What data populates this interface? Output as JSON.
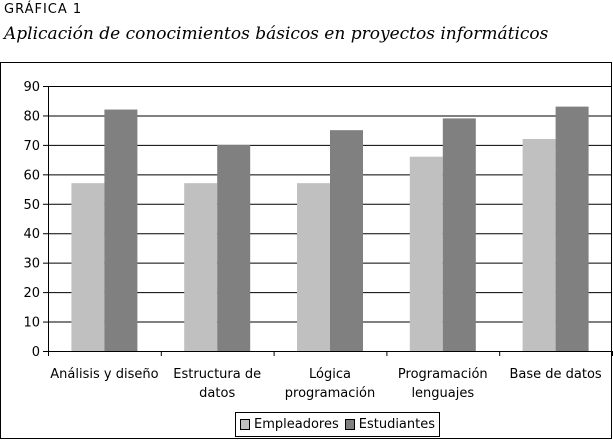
{
  "figure": {
    "label": "GRÁFICA 1",
    "title": "Aplicación de conocimientos básicos en proyectos informáticos"
  },
  "chart_data": {
    "type": "bar",
    "title": "Aplicación de conocimientos básicos en proyectos informáticos",
    "xlabel": "",
    "ylabel": "",
    "ylim": [
      0,
      90
    ],
    "yticks": [
      0,
      10,
      20,
      30,
      40,
      50,
      60,
      70,
      80,
      90
    ],
    "grid": true,
    "legend_position": "bottom",
    "categories": [
      [
        "Análisis y diseño"
      ],
      [
        "Estructura de",
        "datos"
      ],
      [
        "Lógica",
        "programación"
      ],
      [
        "Programación",
        "lenguajes"
      ],
      [
        "Base de datos"
      ]
    ],
    "series": [
      {
        "name": "Empleadores",
        "color": "#c0c0c0",
        "values": [
          57,
          57,
          57,
          66,
          72
        ]
      },
      {
        "name": "Estudiantes",
        "color": "#808080",
        "values": [
          82,
          70,
          75,
          79,
          83
        ]
      }
    ]
  }
}
